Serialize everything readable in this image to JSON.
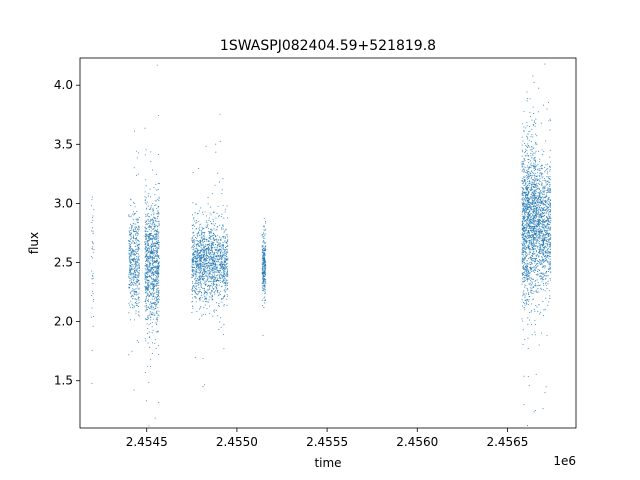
{
  "chart_data": {
    "type": "scatter",
    "title": "1SWASPJ082404.59+521819.8",
    "xlabel": "time",
    "ylabel": "flux",
    "x_offset_label": "1e6",
    "xlim": [
      2.45413,
      2.45688
    ],
    "ylim": [
      1.1,
      4.23
    ],
    "x_ticks": [
      2.4545,
      2.455,
      2.4555,
      2.456,
      2.4565
    ],
    "x_tick_labels": [
      "2.4545",
      "2.4550",
      "2.4555",
      "2.4560",
      "2.4565"
    ],
    "y_ticks": [
      1.5,
      2.0,
      2.5,
      3.0,
      3.5,
      4.0
    ],
    "y_tick_labels": [
      "1.5",
      "2.0",
      "2.5",
      "3.0",
      "3.5",
      "4.0"
    ],
    "grid": false,
    "marker_color": "#1f77b4",
    "clusters": [
      {
        "x_center": 2.4542,
        "x_width": 8e-06,
        "y_center": 2.6,
        "y_spread": 0.35,
        "points": 40
      },
      {
        "x_center": 2.45443,
        "x_width": 3e-05,
        "y_center": 2.5,
        "y_spread": 0.2,
        "points": 450
      },
      {
        "x_center": 2.45453,
        "x_width": 4e-05,
        "y_center": 2.5,
        "y_spread": 0.28,
        "points": 950
      },
      {
        "x_center": 2.45485,
        "x_width": 0.0001,
        "y_center": 2.5,
        "y_spread": 0.17,
        "points": 1400
      },
      {
        "x_center": 2.45515,
        "x_width": 1e-05,
        "y_center": 2.48,
        "y_spread": 0.13,
        "points": 250
      },
      {
        "x_center": 2.45662,
        "x_width": 4e-05,
        "y_center": 2.85,
        "y_spread": 0.33,
        "points": 1300
      },
      {
        "x_center": 2.4567,
        "x_width": 4e-05,
        "y_center": 2.82,
        "y_spread": 0.27,
        "points": 900
      }
    ]
  }
}
